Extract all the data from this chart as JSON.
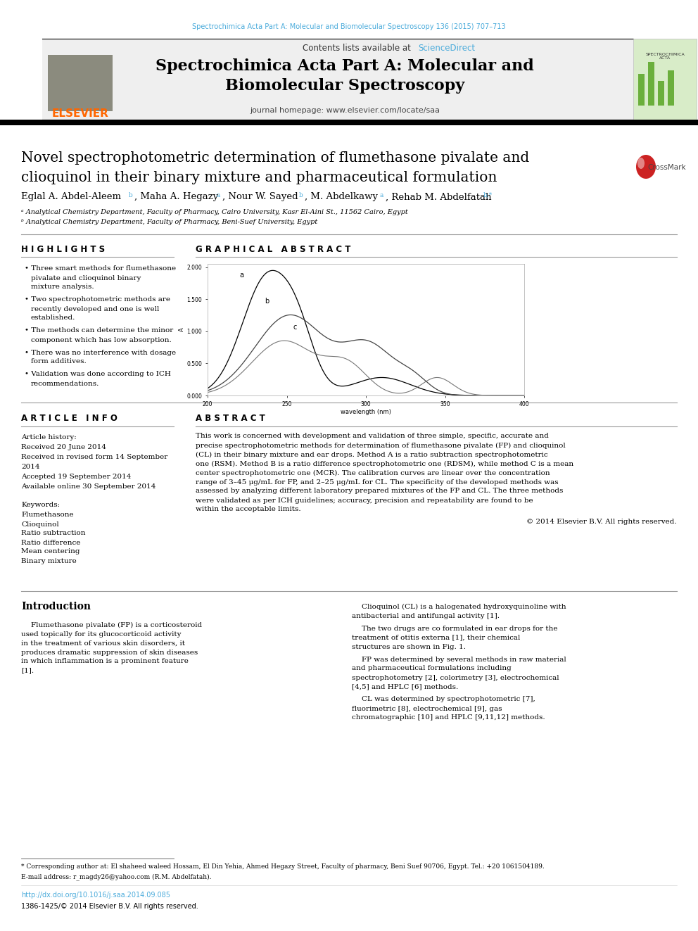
{
  "journal_ref": "Spectrochimica Acta Part A: Molecular and Biomolecular Spectroscopy 136 (2015) 707–713",
  "journal_ref_color": "#4AABDB",
  "header_bg": "#F0F0F0",
  "sciencedirect_color": "#4AABDB",
  "journal_title": "Spectrochimica Acta Part A: Molecular and\nBiomolecular Spectroscopy",
  "journal_homepage": "journal homepage: www.elsevier.com/locate/saa",
  "elsevier_color": "#FF6600",
  "highlights_title": "H I G H L I G H T S",
  "highlights": [
    "Three smart methods for flumethasone pivalate and clioquinol binary mixture analysis.",
    "Two spectrophotometric methods are recently developed and one is well established.",
    "The methods can determine the minor component which has low absorption.",
    "There was no interference with dosage form additives.",
    "Validation was done according to ICH recommendations."
  ],
  "graphical_abstract_title": "G R A P H I C A L   A B S T R A C T",
  "article_info_title": "A R T I C L E   I N F O",
  "article_history": "Article history:",
  "received": "Received 20 June 2014",
  "received_revised": "Received in revised form 14 September",
  "received_revised2": "2014",
  "accepted": "Accepted 19 September 2014",
  "available": "Available online 30 September 2014",
  "keywords_title": "Keywords:",
  "keywords": [
    "Flumethasone",
    "Clioquinol",
    "Ratio subtraction",
    "Ratio difference",
    "Mean centering",
    "Binary mixture"
  ],
  "abstract_title": "A B S T R A C T",
  "abstract_text": "This work is concerned with development and validation of three simple, specific, accurate and precise spectrophotometric methods for determination of flumethasone pivalate (FP) and clioquinol (CL) in their binary mixture and ear drops. Method A is a ratio subtraction spectrophotometric one (RSM). Method B is a ratio difference spectrophotometric one (RDSM), while method C is a mean center spectrophotometric one (MCR). The calibration curves are linear over the concentration range of 3–45 μg/mL for FP, and 2–25 μg/mL for CL. The specificity of the developed methods was assessed by analyzing different laboratory prepared mixtures of the FP and CL. The three methods were validated as per ICH guidelines; accuracy, precision and repeatability are found to be within the acceptable limits.",
  "copyright": "© 2014 Elsevier B.V. All rights reserved.",
  "intro_title": "Introduction",
  "intro_left": "Flumethasone pivalate (FP) is a corticosteroid used topically for its glucocorticoid activity in the treatment of various skin disorders, it produces dramatic suppression of skin diseases in which inflammation is a prominent feature [1].",
  "intro_right_1": "Clioquinol (CL) is a halogenated hydroxyquinoline with antibacterial and antifungal activity [1].",
  "intro_right_2": "The two drugs are co formulated in ear drops for the treatment of otitis externa [1], their chemical structures are shown in Fig. 1.",
  "intro_right_3": "FP was determined by several methods in raw material and pharmaceutical formulations including spectrophotometry [2], colorimetry [3], electrochemical [4,5] and HPLC [6] methods.",
  "intro_right_4": "CL was determined by spectrophotometric [7], fluorimetric [8], electrochemical [9], gas chromatographic [10] and HPLC [9,11,12] methods.",
  "footnote_star": "* Corresponding author at: El shaheed waleed Hossam, El Din Yehia, Ahmed Hegazy Street, Faculty of pharmacy, Beni Suef 90706, Egypt. Tel.: +20 1061504189.",
  "footnote_email": "E-mail address: r_magdy26@yahoo.com (R.M. Abdelfatah).",
  "doi": "http://dx.doi.org/10.1016/j.saa.2014.09.085",
  "issn": "1386-1425/© 2014 Elsevier B.V. All rights reserved.",
  "affil_a": "ᵃ Analytical Chemistry Department, Faculty of Pharmacy, Cairo University, Kasr El-Aini St., 11562 Cairo, Egypt",
  "affil_b": "ᵇ Analytical Chemistry Department, Faculty of Pharmacy, Beni-Suef University, Egypt",
  "bg_color": "#FFFFFF",
  "text_color": "#000000",
  "link_color": "#4AABDB"
}
